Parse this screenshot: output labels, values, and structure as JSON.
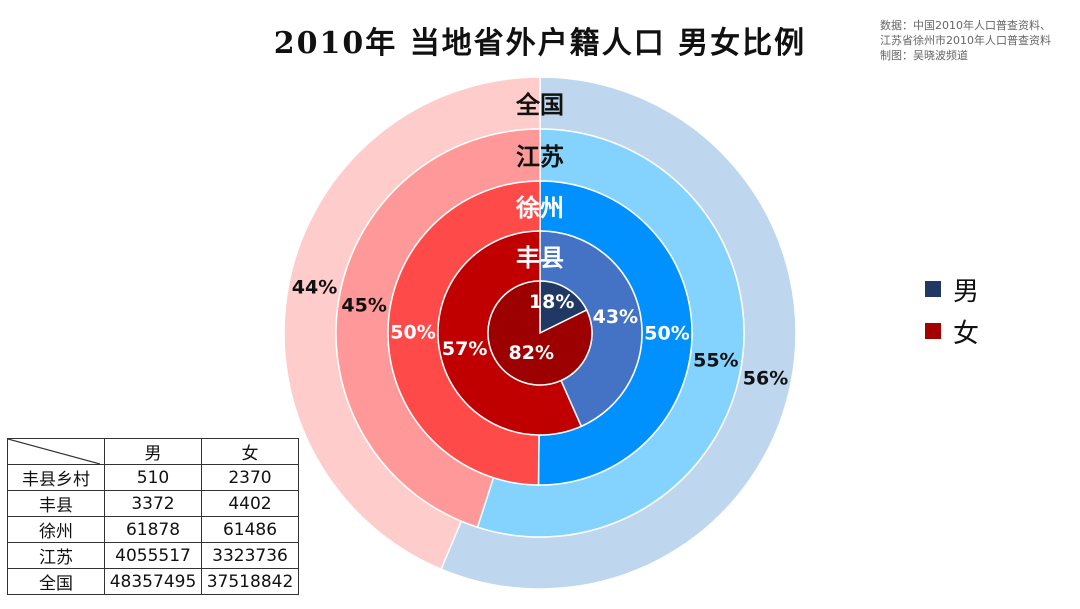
{
  "title": "2010年 当地省外户籍人口 男女比例",
  "source": [
    "数据：中国2010年人口普查资料、",
    "江苏省徐州市2010年人口普查资料",
    "制图：吴晓波频道"
  ],
  "legend": [
    {
      "label": "男",
      "color": "#1f3864"
    },
    {
      "label": "女",
      "color": "#a50000"
    }
  ],
  "chart_data": {
    "type": "pie",
    "subtype": "nested-donut",
    "title": "2010年 当地省外户籍人口 男女比例",
    "series_names": [
      "男",
      "女"
    ],
    "rings": [
      {
        "name": "丰县乡村",
        "label": "",
        "values": [
          510,
          2370
        ],
        "percent_labels": [
          "18%",
          "82%"
        ],
        "colors": [
          "#1f3864",
          "#9c0000"
        ]
      },
      {
        "name": "丰县",
        "label": "丰县",
        "values": [
          3372,
          4402
        ],
        "percent_labels": [
          "43%",
          "57%"
        ],
        "colors": [
          "#4472c4",
          "#c00000"
        ]
      },
      {
        "name": "徐州",
        "label": "徐州",
        "values": [
          61878,
          61486
        ],
        "percent_labels": [
          "50%",
          "50%"
        ],
        "colors": [
          "#0091ff",
          "#ff4a4a"
        ]
      },
      {
        "name": "江苏",
        "label": "江苏",
        "values": [
          4055517,
          3323736
        ],
        "percent_labels": [
          "55%",
          "45%"
        ],
        "colors": [
          "#84d3ff",
          "#ff9999"
        ]
      },
      {
        "name": "全国",
        "label": "全国",
        "values": [
          48357495,
          37518842
        ],
        "percent_labels": [
          "56%",
          "44%"
        ],
        "colors": [
          "#bed7ee",
          "#ffcccc"
        ]
      }
    ]
  },
  "table": {
    "headers": [
      "男",
      "女"
    ],
    "rows": [
      {
        "label": "丰县乡村",
        "male": "510",
        "female": "2370"
      },
      {
        "label": "丰县",
        "male": "3372",
        "female": "4402"
      },
      {
        "label": "徐州",
        "male": "61878",
        "female": "61486"
      },
      {
        "label": "江苏",
        "male": "4055517",
        "female": "3323736"
      },
      {
        "label": "全国",
        "male": "48357495",
        "female": "37518842"
      }
    ]
  }
}
